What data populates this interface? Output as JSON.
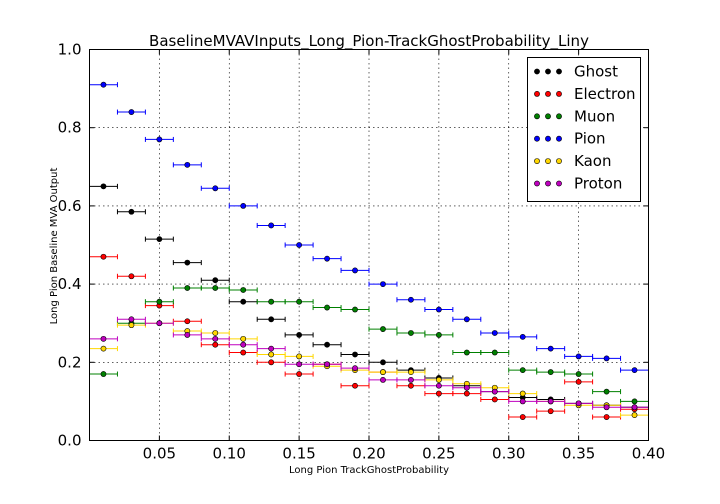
{
  "chart_data": {
    "type": "scatter",
    "title": "BaselineMVAVInputs_Long_Pion-TrackGhostProbability_Liny",
    "xlabel": "Long Pion TrackGhostProbability",
    "ylabel": "Long Pion Baseline MVA Output",
    "xlim": [
      0.0,
      0.4
    ],
    "ylim": [
      0.0,
      1.0
    ],
    "x_ticks": [
      "0.05",
      "0.10",
      "0.15",
      "0.20",
      "0.25",
      "0.30",
      "0.35",
      "0.40"
    ],
    "y_ticks": [
      "0.0",
      "0.2",
      "0.4",
      "0.6",
      "0.8",
      "1.0"
    ],
    "grid": true,
    "legend_position": "top-right",
    "bin_half_width": 0.01,
    "x": [
      0.01,
      0.03,
      0.05,
      0.07,
      0.09,
      0.11,
      0.13,
      0.15,
      0.17,
      0.19,
      0.21,
      0.23,
      0.25,
      0.27,
      0.29,
      0.31,
      0.33,
      0.35,
      0.37,
      0.39
    ],
    "series": [
      {
        "name": "Ghost",
        "color": "#000000",
        "values": [
          0.65,
          0.585,
          0.515,
          0.455,
          0.41,
          0.355,
          0.31,
          0.27,
          0.245,
          0.22,
          0.2,
          0.18,
          0.16,
          0.14,
          0.125,
          0.11,
          0.105,
          0.095,
          0.09,
          0.085
        ]
      },
      {
        "name": "Electron",
        "color": "#ff0000",
        "values": [
          0.47,
          0.42,
          0.345,
          0.305,
          0.245,
          0.225,
          0.2,
          0.17,
          0.195,
          0.14,
          0.175,
          0.14,
          0.12,
          0.12,
          0.105,
          0.06,
          0.075,
          0.15,
          0.06,
          0.08
        ]
      },
      {
        "name": "Muon",
        "color": "#008000",
        "values": [
          0.17,
          0.3,
          0.355,
          0.39,
          0.39,
          0.385,
          0.355,
          0.355,
          0.34,
          0.335,
          0.285,
          0.275,
          0.27,
          0.225,
          0.225,
          0.18,
          0.175,
          0.17,
          0.125,
          0.1
        ]
      },
      {
        "name": "Pion",
        "color": "#0000ff",
        "values": [
          0.91,
          0.84,
          0.77,
          0.705,
          0.645,
          0.6,
          0.55,
          0.5,
          0.465,
          0.435,
          0.4,
          0.36,
          0.335,
          0.31,
          0.275,
          0.265,
          0.235,
          0.215,
          0.21,
          0.18
        ]
      },
      {
        "name": "Kaon",
        "color": "#ffd700",
        "values": [
          0.235,
          0.295,
          0.3,
          0.28,
          0.275,
          0.26,
          0.22,
          0.215,
          0.19,
          0.18,
          0.175,
          0.175,
          0.155,
          0.145,
          0.135,
          0.12,
          0.1,
          0.09,
          0.09,
          0.065
        ]
      },
      {
        "name": "Proton",
        "color": "#bf00bf",
        "values": [
          0.26,
          0.31,
          0.3,
          0.27,
          0.26,
          0.245,
          0.235,
          0.195,
          0.195,
          0.185,
          0.155,
          0.155,
          0.14,
          0.135,
          0.125,
          0.1,
          0.1,
          0.095,
          0.085,
          0.085
        ]
      }
    ]
  }
}
